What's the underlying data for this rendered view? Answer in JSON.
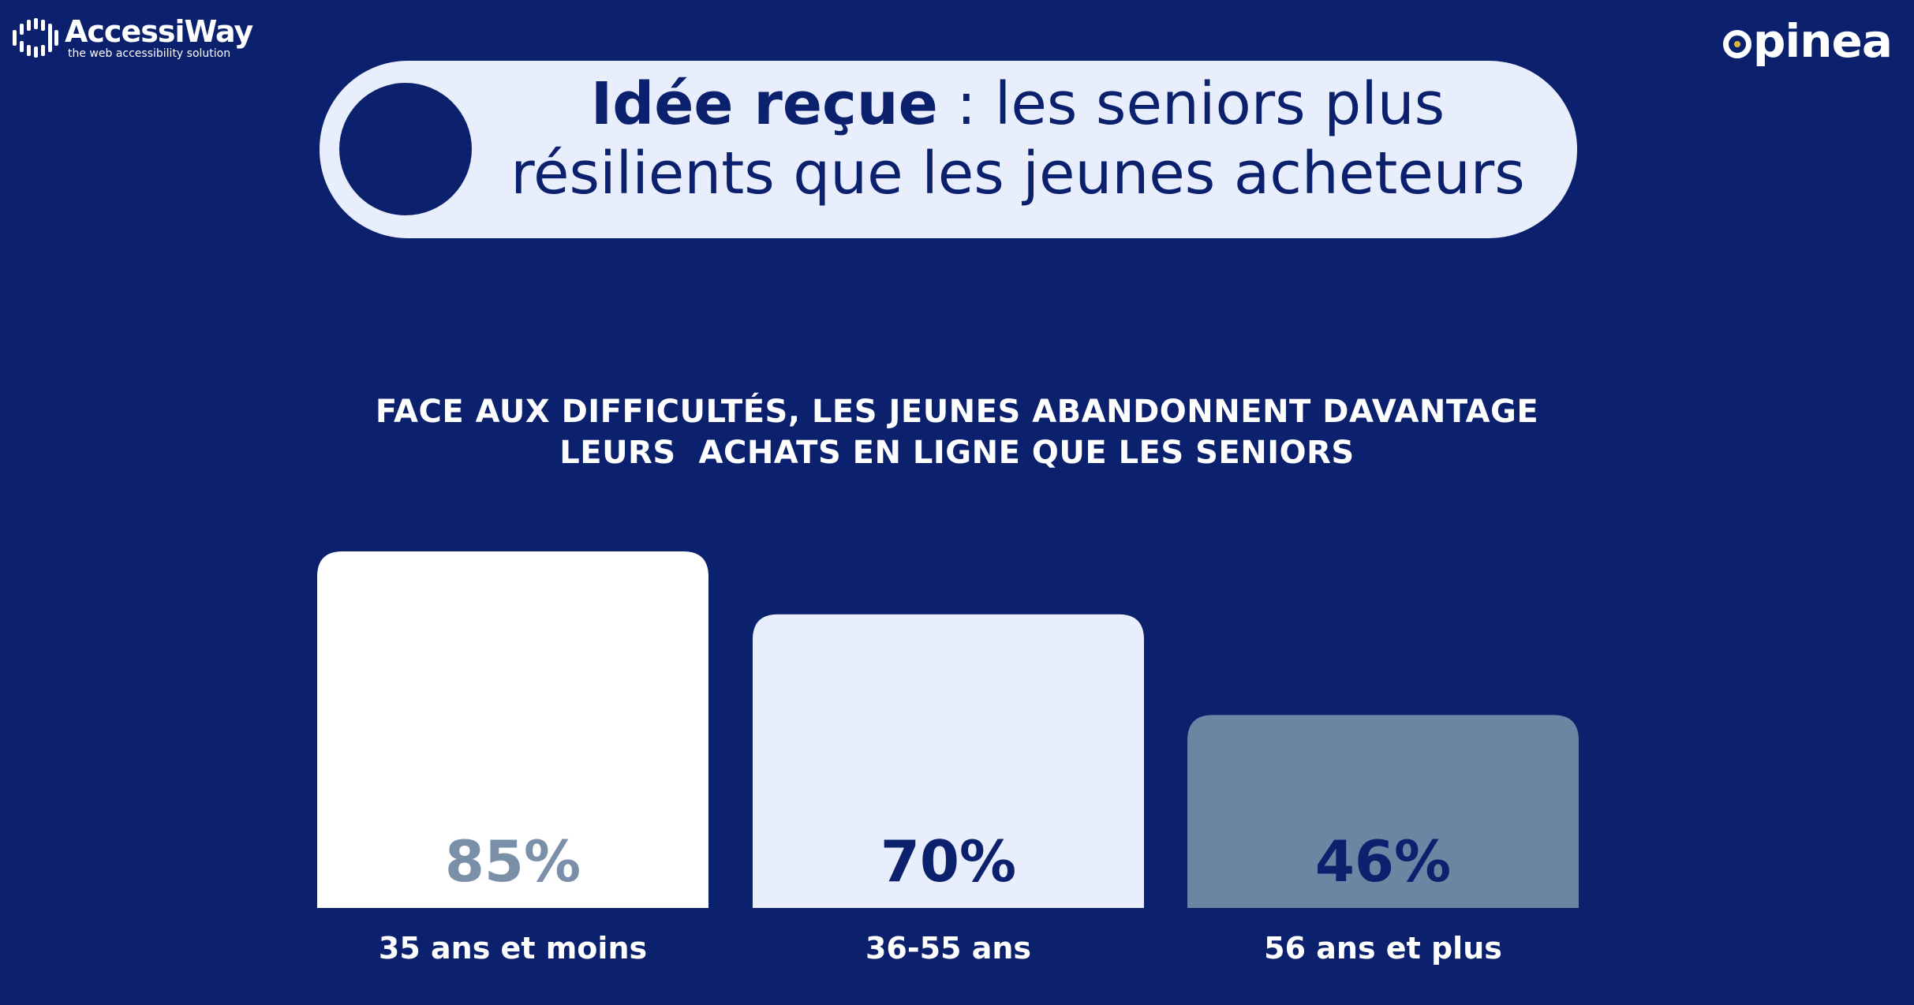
{
  "header": {
    "left_logo": {
      "name": "AccessiWay",
      "tagline": "the web accessibility solution"
    },
    "right_logo": {
      "name": "opinea",
      "name_rest": "pinea"
    }
  },
  "title": {
    "bold": "Idée reçue",
    "rest": " : les seniors plus",
    "line2": "résilients que les jeunes acheteurs"
  },
  "colors": {
    "background": "#0c216e",
    "pill": "#e8eefb",
    "bar1": "#ffffff",
    "bar2": "#e8eefb",
    "bar3": "#6b86a3"
  },
  "chart_data": {
    "type": "bar",
    "title": "FACE AUX DIFFICULTÉS, LES JEUNES ABANDONNENT DAVANTAGE",
    "title_line2": "LEURS  ACHATS EN LIGNE QUE LES SENIORS",
    "categories": [
      "35 ans et moins",
      "36-55 ans",
      "56 ans et plus"
    ],
    "values": [
      85,
      70,
      46
    ],
    "labels": [
      "85%",
      "70%",
      "46%"
    ],
    "bar_colors": [
      "#ffffff",
      "#e8eefb",
      "#6b86a3"
    ],
    "label_colors": [
      "#7a8fa8",
      "#0c216e",
      "#0c216e"
    ],
    "xlabel": "",
    "ylabel": "",
    "ylim": [
      0,
      85
    ],
    "grid": false,
    "legend": "none"
  }
}
